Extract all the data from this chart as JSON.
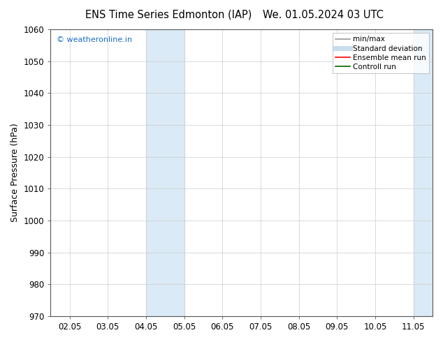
{
  "title_left": "ENS Time Series Edmonton (IAP)",
  "title_right": "We. 01.05.2024 03 UTC",
  "ylabel": "Surface Pressure (hPa)",
  "ylim": [
    970,
    1060
  ],
  "yticks": [
    970,
    980,
    990,
    1000,
    1010,
    1020,
    1030,
    1040,
    1050,
    1060
  ],
  "xtick_labels": [
    "02.05",
    "03.05",
    "04.05",
    "05.05",
    "06.05",
    "07.05",
    "08.05",
    "09.05",
    "10.05",
    "11.05"
  ],
  "xtick_positions": [
    0,
    1,
    2,
    3,
    4,
    5,
    6,
    7,
    8,
    9
  ],
  "xlim_min": -0.5,
  "xlim_max": 9.5,
  "shaded_regions": [
    {
      "xmin": 2.0,
      "xmax": 3.0,
      "color": "#daeaf6"
    },
    {
      "xmin": 9.0,
      "xmax": 9.5,
      "color": "#daeaf6"
    }
  ],
  "watermark_text": "© weatheronline.in",
  "watermark_color": "#1a6ecc",
  "background_color": "#ffffff",
  "plot_bg_color": "#ffffff",
  "legend_entries": [
    {
      "label": "min/max",
      "color": "#999999",
      "lw": 1.2,
      "ls": "-"
    },
    {
      "label": "Standard deviation",
      "color": "#c8dced",
      "lw": 5,
      "ls": "-"
    },
    {
      "label": "Ensemble mean run",
      "color": "#ff0000",
      "lw": 1.2,
      "ls": "-"
    },
    {
      "label": "Controll run",
      "color": "#006600",
      "lw": 1.2,
      "ls": "-"
    }
  ],
  "font_family": "DejaVu Sans",
  "title_fontsize": 10.5,
  "tick_fontsize": 8.5,
  "ylabel_fontsize": 9,
  "watermark_fontsize": 8,
  "legend_fontsize": 7.5
}
